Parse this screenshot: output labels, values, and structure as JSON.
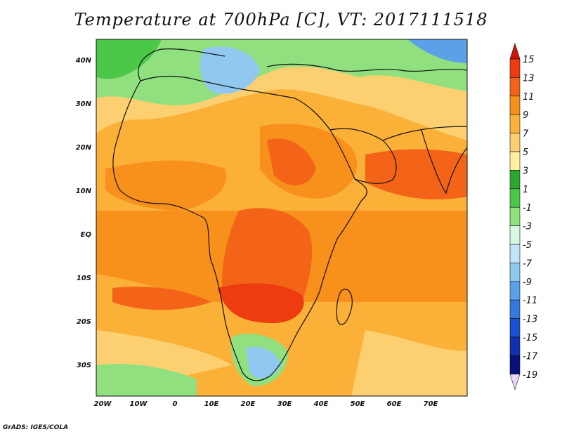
{
  "title": "Temperature at 700hPa [C], VT: 2017111518",
  "credit": "GrADS: IGES/COLA",
  "lat_labels": [
    "40N",
    "30N",
    "20N",
    "10N",
    "EQ",
    "10S",
    "20S",
    "30S"
  ],
  "lon_labels": [
    "20W",
    "10W",
    "0",
    "10E",
    "20E",
    "30E",
    "40E",
    "50E",
    "60E",
    "70E"
  ],
  "colorbar": {
    "labels": [
      "15",
      "13",
      "11",
      "9",
      "7",
      "5",
      "3",
      "1",
      "-1",
      "-3",
      "-5",
      "-7",
      "-9",
      "-11",
      "-13",
      "-15",
      "-17",
      "-19"
    ],
    "colors": [
      "#d01408",
      "#ec3c10",
      "#f46418",
      "#f8901c",
      "#fbb038",
      "#fcd070",
      "#fff0a0",
      "#2ca830",
      "#4cc848",
      "#90e080",
      "#d8f8e0",
      "#c0e4f8",
      "#90c8f0",
      "#5ca0e8",
      "#3478e0",
      "#1c50d0",
      "#1030b0",
      "#08107a",
      "#e8d8f8"
    ]
  },
  "map_palette": {
    "warmest": "#ec3c10",
    "warm": "#f46418",
    "mid": "#f8901c",
    "mild": "#fbb038",
    "cool": "#fcd070",
    "cooler": "#fff0a0",
    "green": "#4cc848",
    "lightgreen": "#90e080",
    "blue": "#90c8f0"
  }
}
